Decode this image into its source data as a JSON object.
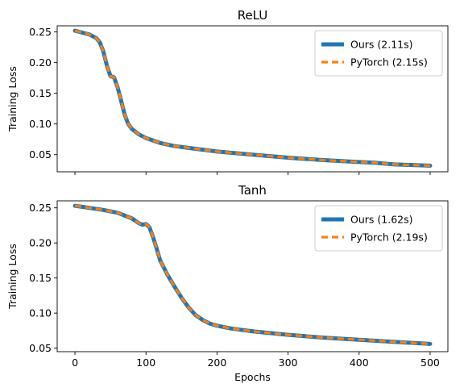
{
  "chart_data": [
    {
      "type": "line",
      "title": "ReLU",
      "xlabel": "",
      "ylabel": "Training Loss",
      "xlim": [
        -25,
        525
      ],
      "ylim": [
        0.022,
        0.26
      ],
      "xticks": [
        0,
        100,
        200,
        300,
        400,
        500
      ],
      "xtick_labels_shown": false,
      "yticks": [
        0.05,
        0.1,
        0.15,
        0.2,
        0.25
      ],
      "ytick_labels": [
        "0.05",
        "0.10",
        "0.15",
        "0.20",
        "0.25"
      ],
      "legend_position": "top-right",
      "series": [
        {
          "name": "Ours (2.11s)",
          "color": "#1f77b4",
          "style": "solid",
          "x": [
            0,
            10,
            20,
            30,
            35,
            40,
            45,
            50,
            55,
            60,
            65,
            70,
            75,
            80,
            90,
            100,
            120,
            140,
            160,
            180,
            200,
            250,
            300,
            350,
            400,
            420,
            430,
            450,
            475,
            500
          ],
          "y": [
            0.252,
            0.249,
            0.246,
            0.24,
            0.233,
            0.218,
            0.195,
            0.178,
            0.176,
            0.16,
            0.138,
            0.115,
            0.1,
            0.092,
            0.083,
            0.077,
            0.069,
            0.064,
            0.061,
            0.058,
            0.055,
            0.05,
            0.045,
            0.041,
            0.038,
            0.037,
            0.036,
            0.034,
            0.033,
            0.032
          ]
        },
        {
          "name": "PyTorch (2.15s)",
          "color": "#ff7f0e",
          "style": "dashed",
          "x": [
            0,
            10,
            20,
            30,
            35,
            40,
            45,
            50,
            55,
            60,
            65,
            70,
            75,
            80,
            90,
            100,
            120,
            140,
            160,
            180,
            200,
            250,
            300,
            350,
            400,
            420,
            430,
            450,
            475,
            500
          ],
          "y": [
            0.252,
            0.249,
            0.246,
            0.24,
            0.233,
            0.218,
            0.195,
            0.178,
            0.176,
            0.16,
            0.138,
            0.115,
            0.1,
            0.092,
            0.083,
            0.077,
            0.069,
            0.064,
            0.061,
            0.058,
            0.055,
            0.05,
            0.045,
            0.041,
            0.038,
            0.037,
            0.036,
            0.034,
            0.033,
            0.032
          ]
        }
      ]
    },
    {
      "type": "line",
      "title": "Tanh",
      "xlabel": "Epochs",
      "ylabel": "Training Loss",
      "xlim": [
        -25,
        525
      ],
      "ylim": [
        0.045,
        0.26
      ],
      "xticks": [
        0,
        100,
        200,
        300,
        400,
        500
      ],
      "xtick_labels": [
        "0",
        "100",
        "200",
        "300",
        "400",
        "500"
      ],
      "yticks": [
        0.05,
        0.1,
        0.15,
        0.2,
        0.25
      ],
      "ytick_labels": [
        "0.05",
        "0.10",
        "0.15",
        "0.20",
        "0.25"
      ],
      "legend_position": "top-right",
      "series": [
        {
          "name": "Ours (1.62s)",
          "color": "#1f77b4",
          "style": "solid",
          "x": [
            0,
            20,
            40,
            60,
            80,
            90,
            95,
            100,
            105,
            110,
            115,
            120,
            130,
            140,
            150,
            160,
            170,
            180,
            190,
            200,
            220,
            250,
            300,
            350,
            400,
            450,
            500
          ],
          "y": [
            0.253,
            0.25,
            0.247,
            0.243,
            0.235,
            0.228,
            0.226,
            0.227,
            0.222,
            0.208,
            0.192,
            0.175,
            0.155,
            0.138,
            0.122,
            0.108,
            0.097,
            0.09,
            0.085,
            0.082,
            0.078,
            0.074,
            0.069,
            0.065,
            0.062,
            0.059,
            0.056
          ]
        },
        {
          "name": "PyTorch (2.19s)",
          "color": "#ff7f0e",
          "style": "dashed",
          "x": [
            0,
            20,
            40,
            60,
            80,
            90,
            95,
            100,
            105,
            110,
            115,
            120,
            130,
            140,
            150,
            160,
            170,
            180,
            190,
            200,
            220,
            250,
            300,
            350,
            400,
            450,
            500
          ],
          "y": [
            0.253,
            0.25,
            0.247,
            0.243,
            0.235,
            0.228,
            0.226,
            0.227,
            0.222,
            0.208,
            0.192,
            0.175,
            0.155,
            0.138,
            0.122,
            0.108,
            0.097,
            0.09,
            0.085,
            0.082,
            0.078,
            0.074,
            0.069,
            0.065,
            0.062,
            0.059,
            0.056
          ]
        }
      ]
    }
  ]
}
